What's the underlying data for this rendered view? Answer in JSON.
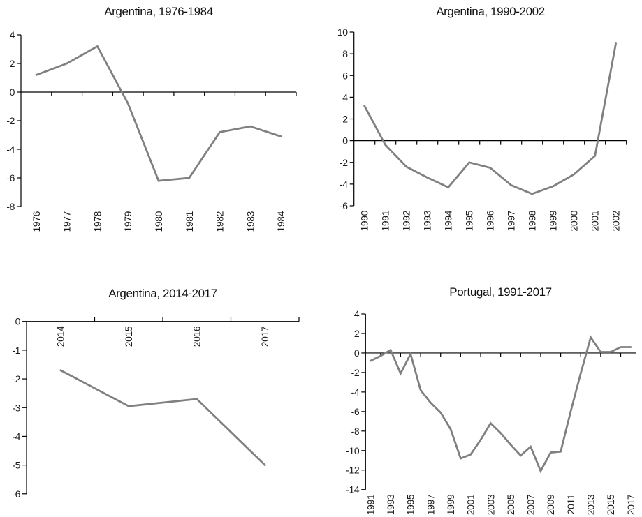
{
  "figure": {
    "background": "#ffffff",
    "axis_color": "#000000",
    "line_color": "#808080",
    "text_color": "#1c1c1c"
  },
  "chart_data": [
    {
      "type": "line",
      "title": "Argentina, 1976-1984",
      "x": [
        1976,
        1977,
        1978,
        1979,
        1980,
        1981,
        1982,
        1983,
        1984
      ],
      "values": [
        1.2,
        2.0,
        3.2,
        -0.8,
        -6.2,
        -6.0,
        -2.8,
        -2.4,
        -3.1
      ],
      "ylim": [
        -8,
        4
      ],
      "yticks": [
        4,
        2,
        0,
        -2,
        -4,
        -6,
        -8
      ],
      "x_label_step": 1,
      "grid": false,
      "legend": null
    },
    {
      "type": "line",
      "title": "Argentina, 1990-2002",
      "x": [
        1990,
        1991,
        1992,
        1993,
        1994,
        1995,
        1996,
        1997,
        1998,
        1999,
        2000,
        2001,
        2002
      ],
      "values": [
        3.2,
        -0.4,
        -2.4,
        -3.4,
        -4.3,
        -2.0,
        -2.5,
        -4.1,
        -4.9,
        -4.2,
        -3.1,
        -1.4,
        9.0
      ],
      "ylim": [
        -6,
        10
      ],
      "yticks": [
        10,
        8,
        6,
        4,
        2,
        0,
        -2,
        -4,
        -6
      ],
      "x_label_step": 1,
      "grid": false,
      "legend": null
    },
    {
      "type": "line",
      "title": "Argentina, 2014-2017",
      "x": [
        2014,
        2015,
        2016,
        2017
      ],
      "values": [
        -1.7,
        -2.95,
        -2.7,
        -5.0
      ],
      "ylim": [
        -6,
        0
      ],
      "yticks": [
        0,
        -1,
        -2,
        -3,
        -4,
        -5,
        -6
      ],
      "x_label_step": 1,
      "grid": false,
      "legend": null
    },
    {
      "type": "line",
      "title": "Portugal, 1991-2017",
      "x": [
        1991,
        1992,
        1993,
        1994,
        1995,
        1996,
        1997,
        1998,
        1999,
        2000,
        2001,
        2002,
        2003,
        2004,
        2005,
        2006,
        2007,
        2008,
        2009,
        2010,
        2011,
        2012,
        2013,
        2014,
        2015,
        2016,
        2017
      ],
      "values": [
        -0.8,
        -0.3,
        0.3,
        -2.1,
        -0.1,
        -3.8,
        -5.1,
        -6.1,
        -7.8,
        -10.8,
        -10.4,
        -8.9,
        -7.2,
        -8.2,
        -9.4,
        -10.5,
        -9.6,
        -12.1,
        -10.2,
        -10.1,
        -6.0,
        -2.1,
        1.6,
        0.1,
        0.1,
        0.6,
        0.6
      ],
      "ylim": [
        -14,
        4
      ],
      "yticks": [
        4,
        2,
        0,
        -2,
        -4,
        -6,
        -8,
        -10,
        -12,
        -14
      ],
      "x_label_step": 2,
      "grid": false,
      "legend": null
    }
  ]
}
